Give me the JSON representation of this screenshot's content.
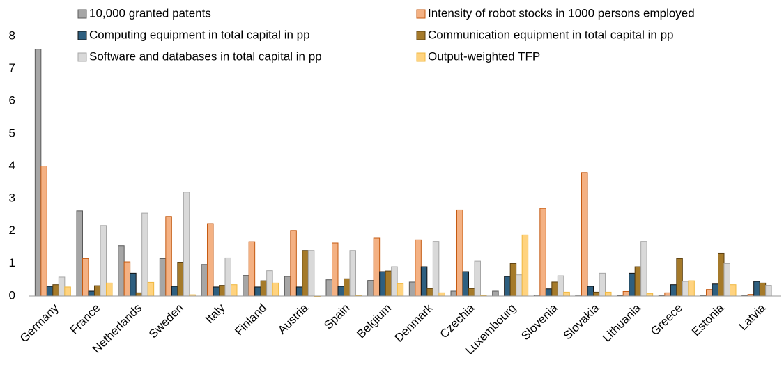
{
  "chart_data": {
    "type": "bar",
    "categories": [
      "Germany",
      "France",
      "Netherlands",
      "Sweden",
      "Italy",
      "Finland",
      "Austria",
      "Spain",
      "Belgium",
      "Denmark",
      "Czechia",
      "Luxembourg",
      "Slovenia",
      "Slovakia",
      "Lithuania",
      "Greece",
      "Estonia",
      "Latvia"
    ],
    "series": [
      {
        "name": "10,000 granted patents",
        "color": "#a6a6a6",
        "stroke": "#595959",
        "values": [
          7.6,
          2.62,
          1.55,
          1.15,
          0.97,
          0.63,
          0.6,
          0.5,
          0.48,
          0.43,
          0.15,
          0.15,
          0.03,
          0.03,
          0.02,
          0.01,
          0.01,
          0.01
        ]
      },
      {
        "name": "Intensity of robot stocks in 1000 persons employed",
        "color": "#f4b183",
        "stroke": "#c55a11",
        "values": [
          4.0,
          1.15,
          1.05,
          2.45,
          2.23,
          1.67,
          2.02,
          1.63,
          1.78,
          1.73,
          2.65,
          0,
          2.7,
          3.8,
          0.14,
          0.1,
          0.2,
          0.05
        ]
      },
      {
        "name": "Computing equipment in total capital in pp",
        "color": "#2e5f80",
        "stroke": "#111111",
        "values": [
          0.3,
          0.15,
          0.7,
          0.3,
          0.28,
          0.28,
          0.28,
          0.3,
          0.75,
          0.9,
          0.75,
          0.6,
          0.22,
          0.3,
          0.7,
          0.35,
          0.37,
          0.45
        ]
      },
      {
        "name": "Communication equipment in total capital in pp",
        "color": "#a57a2a",
        "stroke": "#5c4010",
        "values": [
          0.35,
          0.32,
          0.1,
          1.04,
          0.33,
          0.47,
          1.4,
          0.53,
          0.77,
          0.23,
          0.23,
          1.0,
          0.43,
          0.12,
          0.9,
          1.15,
          1.32,
          0.4
        ]
      },
      {
        "name": "Software and databases in total capital in pp",
        "color": "#d9d9d9",
        "stroke": "#a6a6a6",
        "values": [
          0.58,
          2.17,
          2.55,
          3.2,
          1.17,
          0.78,
          1.4,
          1.4,
          0.9,
          1.68,
          1.07,
          0.65,
          0.62,
          0.7,
          1.68,
          0.45,
          1.0,
          0.33
        ]
      },
      {
        "name": "Output-weighted TFP",
        "color": "#ffd37f",
        "stroke": "#f0b840",
        "values": [
          0.28,
          0.4,
          0.42,
          0.04,
          0.35,
          0.4,
          -0.02,
          0.02,
          0.38,
          0.1,
          0.02,
          1.88,
          0.12,
          0.12,
          0.08,
          0.47,
          0.35,
          0.0
        ]
      }
    ],
    "ylim": [
      0,
      8
    ],
    "yticks": [
      0,
      1,
      2,
      3,
      4,
      5,
      6,
      7,
      8
    ],
    "grid": false
  }
}
